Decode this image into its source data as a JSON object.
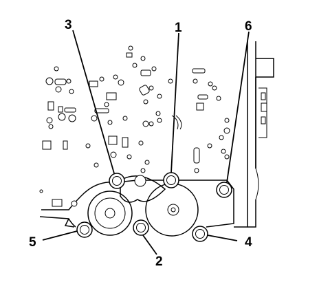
{
  "callouts": {
    "c1": "1",
    "c2": "2",
    "c3": "3",
    "c4": "4",
    "c5": "5",
    "c6": "6"
  }
}
